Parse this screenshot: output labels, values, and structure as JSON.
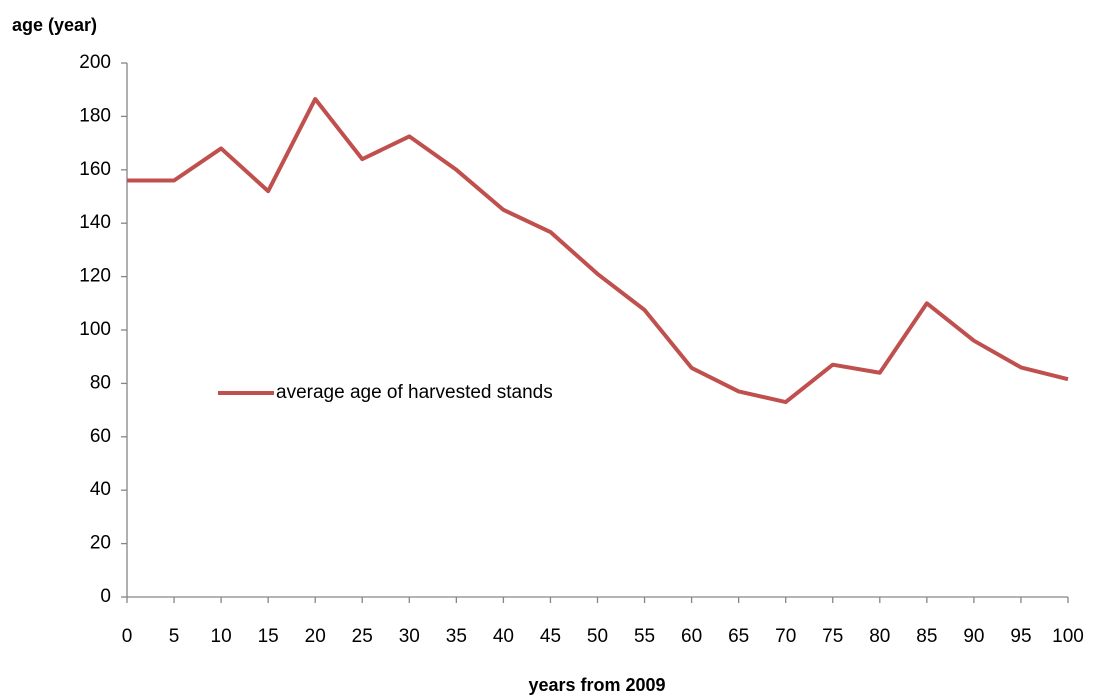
{
  "chart_data": {
    "type": "line",
    "y_label": "age  (year)",
    "x_label": "years from 2009",
    "x": [
      0,
      5,
      10,
      15,
      20,
      25,
      30,
      35,
      40,
      45,
      50,
      55,
      60,
      65,
      70,
      75,
      80,
      85,
      90,
      95,
      100
    ],
    "series": [
      {
        "name": "average age of harvested stands",
        "color": "#c0504d",
        "values": [
          156,
          156,
          168,
          152,
          186.5,
          164,
          172.5,
          160,
          145,
          136.7,
          121,
          107.5,
          85.8,
          77,
          73,
          87,
          84,
          110,
          96,
          86,
          81.6
        ]
      }
    ],
    "xlim": [
      0,
      100
    ],
    "xticks": [
      0,
      5,
      10,
      15,
      20,
      25,
      30,
      35,
      40,
      45,
      50,
      55,
      60,
      65,
      70,
      75,
      80,
      85,
      90,
      95,
      100
    ],
    "ylim": [
      0,
      200
    ],
    "yticks": [
      0,
      20,
      40,
      60,
      80,
      100,
      120,
      140,
      160,
      180,
      200
    ],
    "grid": false,
    "legend_position": "left"
  }
}
